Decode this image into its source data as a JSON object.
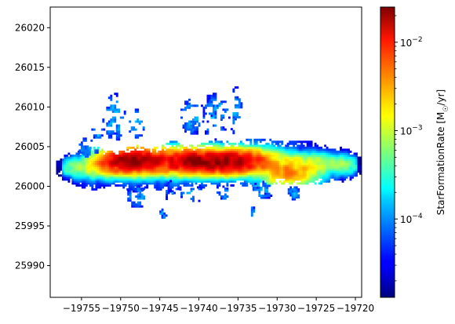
{
  "chart_data": {
    "type": "heatmap",
    "title": "",
    "xlabel": "",
    "ylabel": "",
    "xlim": [
      -19759.0,
      -19719.2
    ],
    "ylim": [
      25986.0,
      26022.6
    ],
    "x_ticks": [
      {
        "value": -19755,
        "label": "−19755"
      },
      {
        "value": -19750,
        "label": "−19750"
      },
      {
        "value": -19745,
        "label": "−19745"
      },
      {
        "value": -19740,
        "label": "−19740"
      },
      {
        "value": -19735,
        "label": "−19735"
      },
      {
        "value": -19730,
        "label": "−19730"
      },
      {
        "value": -19725,
        "label": "−19725"
      },
      {
        "value": -19720,
        "label": "−19720"
      }
    ],
    "y_ticks": [
      {
        "value": 25990,
        "label": "25990"
      },
      {
        "value": 25995,
        "label": "25995"
      },
      {
        "value": 26000,
        "label": "26000"
      },
      {
        "value": 26005,
        "label": "26005"
      },
      {
        "value": 26010,
        "label": "26010"
      },
      {
        "value": 26015,
        "label": "26015"
      },
      {
        "value": 26020,
        "label": "26020"
      }
    ],
    "colorbar": {
      "label": "StarFormationRate [M$_\\odot$/yr]",
      "label_display": "StarFormationRate [M",
      "label_subscript": "☉",
      "label_suffix": "/yr]",
      "scale": "log",
      "range": [
        1.3e-05,
        0.025
      ],
      "colormap": "jet",
      "ticks": [
        {
          "value": 0.0001,
          "base": "10",
          "exp": "−4"
        },
        {
          "value": 0.001,
          "base": "10",
          "exp": "−3"
        },
        {
          "value": 0.01,
          "base": "10",
          "exp": "−2"
        }
      ]
    },
    "disk": {
      "description_values": "elongated edge-on star-forming disk",
      "x_range": [
        -19757.5,
        -19719.7
      ],
      "y_center": 26002.6,
      "half_thickness": 2.6,
      "peak_rate": 0.02,
      "clumps": [
        {
          "x": -19749.5,
          "y": 26003.2,
          "rate": 0.016
        },
        {
          "x": -19746.5,
          "y": 26003.4,
          "rate": 0.012
        },
        {
          "x": -19741.0,
          "y": 26003.2,
          "rate": 0.02
        },
        {
          "x": -19736.6,
          "y": 26003.1,
          "rate": 0.018
        },
        {
          "x": -19733.5,
          "y": 26003.3,
          "rate": 0.006
        },
        {
          "x": -19728.5,
          "y": 26001.6,
          "rate": 0.004
        }
      ]
    }
  }
}
